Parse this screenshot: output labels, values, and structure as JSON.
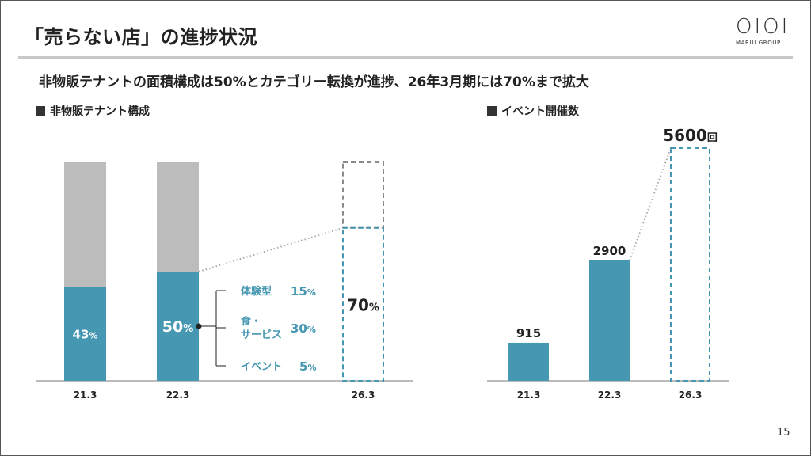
{
  "slide": {
    "title": "「売らない店」の進捗状況",
    "logo": {
      "marks": "OIOI",
      "sub": "MARUI GROUP"
    },
    "subtitle": "非物販テナントの面積構成は50%とカテゴリー転換が進捗、26年3月期には70%まで拡大",
    "page_number": "15"
  },
  "chart_data": [
    {
      "type": "bar",
      "title": "非物販テナント構成",
      "categories": [
        "21.3",
        "22.3",
        "26.3"
      ],
      "unit": "%",
      "series": [
        {
          "values": [
            43,
            50,
            70
          ],
          "labels": [
            "43",
            "50",
            "70"
          ],
          "style": [
            "solid",
            "solid",
            "dashed"
          ]
        }
      ],
      "total": 100,
      "breakdown_22_3": [
        {
          "label_lines": [
            "体験型"
          ],
          "value": 15,
          "value_text": "15"
        },
        {
          "label_lines": [
            "食・",
            "サービス"
          ],
          "value": 30,
          "value_text": "30"
        },
        {
          "label_lines": [
            "イベント"
          ],
          "value": 5,
          "value_text": "5"
        }
      ],
      "colors": {
        "solid": "#4597b2",
        "remainder": "#bcbcbc",
        "dashed_upper": "#8a8a8a"
      }
    },
    {
      "type": "bar",
      "title": "イベント開催数",
      "categories": [
        "21.3",
        "22.3",
        "26.3"
      ],
      "unit": "回",
      "series": [
        {
          "values": [
            915,
            2900,
            5600
          ],
          "labels": [
            "915",
            "2900",
            "5600"
          ],
          "style": [
            "solid",
            "solid",
            "dashed"
          ]
        }
      ],
      "colors": {
        "solid": "#4597b2"
      }
    }
  ]
}
